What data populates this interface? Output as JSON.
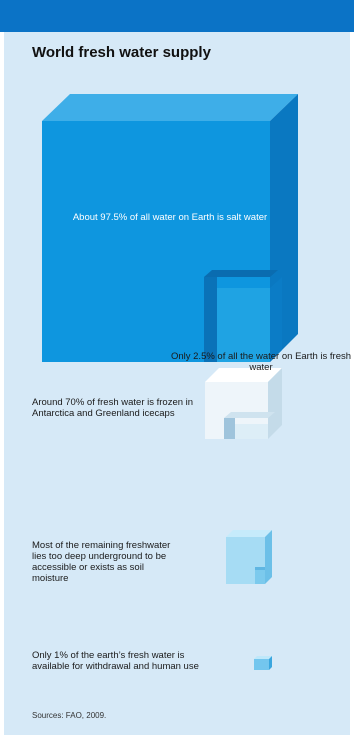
{
  "title": "World fresh water supply",
  "captions": {
    "salt_water": "About 97.5% of all water on Earth is salt water",
    "fresh_water": "Only 2.5% of all the water on Earth is fresh water",
    "ice": "Around 70% of fresh water is frozen in Antarctica and Greenland icecaps",
    "underground": "Most of the remaining freshwater lies too deep underground to be accessible or exists as soil moisture",
    "available": "Only 1% of the earth’s fresh water is available for withdrawal and human use"
  },
  "sources": "Sources: FAO, 2009.",
  "colors": {
    "header_bar": "#0b73c6",
    "background": "#d6e9f7",
    "salt_water_cube": "#0e96df",
    "fresh_water_cube": "#a6dcf4",
    "ice_cube": "#eef5fa"
  }
}
